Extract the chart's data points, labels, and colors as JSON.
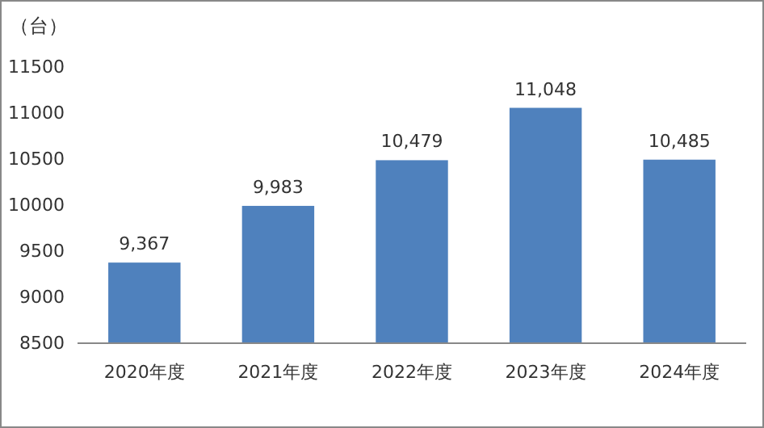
{
  "chart_data": {
    "type": "bar",
    "ylabel": "（台）",
    "categories": [
      "2020年度",
      "2021年度",
      "2022年度",
      "2023年度",
      "2024年度"
    ],
    "values": [
      9367,
      9983,
      10479,
      11048,
      10485
    ],
    "value_labels": [
      "9,367",
      "9,983",
      "10,479",
      "11,048",
      "10,485"
    ],
    "color": "#4f81bd",
    "ylim": [
      8500,
      11500
    ],
    "yticks": [
      8500,
      9000,
      9500,
      10000,
      10500,
      11000,
      11500
    ]
  }
}
